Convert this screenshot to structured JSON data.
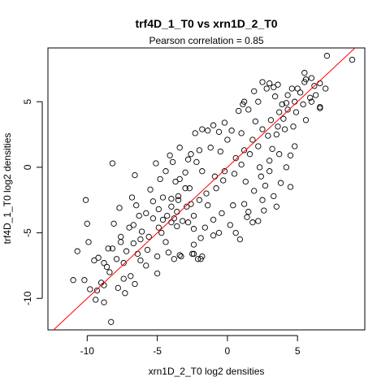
{
  "chart_data": {
    "type": "scatter",
    "title": "trf4D_1_T0 vs xrn1D_2_T0",
    "subtitle": "Pearson correlation =  0.85",
    "xlabel": "xrn1D_2_T0 log2 densities",
    "ylabel": "trf4D_1_T0 log2 densities",
    "xlim": [
      -12.8,
      9.8
    ],
    "ylim": [
      -12.4,
      9.1
    ],
    "x_ticks": [
      -10,
      -5,
      0,
      5
    ],
    "y_ticks": [
      -10,
      -5,
      0,
      5
    ],
    "x_tick_labels": [
      "-10",
      "-5",
      "0",
      "5"
    ],
    "y_tick_labels": [
      "-10",
      "-5",
      "0",
      "5"
    ],
    "grid": false,
    "marker": "open-circle",
    "point_color": "#000000",
    "fit_line": {
      "slope": 1.0,
      "intercept": 0.0,
      "color": "#ff0000"
    },
    "points": [
      [
        -10.2,
        -8.6
      ],
      [
        -9.8,
        -9.3
      ],
      [
        -9.0,
        -8.8
      ],
      [
        -9.4,
        -10.1
      ],
      [
        -8.8,
        -9.0
      ],
      [
        -11.0,
        -8.6
      ],
      [
        -10.7,
        -6.4
      ],
      [
        -9.9,
        -5.7
      ],
      [
        -10.0,
        -4.3
      ],
      [
        -9.5,
        -7.1
      ],
      [
        -10.1,
        -2.5
      ],
      [
        -8.3,
        -11.8
      ],
      [
        -8.2,
        0.3
      ],
      [
        -8.6,
        -7.6
      ],
      [
        -8.8,
        -10.3
      ],
      [
        -8.1,
        -4.3
      ],
      [
        -7.6,
        -5.3
      ],
      [
        -7.8,
        -9.2
      ],
      [
        -7.4,
        -8.5
      ],
      [
        -7.4,
        -7.3
      ],
      [
        -7.7,
        -3.1
      ],
      [
        -8.2,
        -6.2
      ],
      [
        -6.6,
        -0.6
      ],
      [
        -6.9,
        -8.3
      ],
      [
        -6.2,
        -7.1
      ],
      [
        -6.7,
        -4.4
      ],
      [
        -6.5,
        -2.9
      ],
      [
        -6.2,
        -5.5
      ],
      [
        -6.3,
        -3.7
      ],
      [
        -6.8,
        -2.3
      ],
      [
        -5.5,
        -1.7
      ],
      [
        -5.7,
        -6.3
      ],
      [
        -5.3,
        -3.9
      ],
      [
        -5.0,
        -8.1
      ],
      [
        -5.1,
        0.3
      ],
      [
        -4.4,
        -0.3
      ],
      [
        -4.9,
        -3.2
      ],
      [
        -4.2,
        -6.5
      ],
      [
        -3.8,
        -7.0
      ],
      [
        -4.7,
        -5.0
      ],
      [
        -3.6,
        -4.5
      ],
      [
        -4.0,
        -2.4
      ],
      [
        -3.4,
        -0.9
      ],
      [
        -3.3,
        -6.8
      ],
      [
        -3.9,
        0.4
      ],
      [
        -2.3,
        2.6
      ],
      [
        -3.5,
        -2.5
      ],
      [
        -3.0,
        -1.6
      ],
      [
        -2.6,
        1.0
      ],
      [
        -2.5,
        -6.6
      ],
      [
        -1.8,
        -6.8
      ],
      [
        -1.9,
        -7.0
      ],
      [
        -2.4,
        -4.7
      ],
      [
        -1.8,
        2.9
      ],
      [
        -1.0,
        3.2
      ],
      [
        -0.2,
        3.4
      ],
      [
        0.8,
        4.3
      ],
      [
        1.1,
        4.8
      ],
      [
        1.2,
        5.0
      ],
      [
        1.9,
        5.8
      ],
      [
        2.8,
        6.0
      ],
      [
        3.3,
        6.1
      ],
      [
        2.5,
        6.5
      ],
      [
        3.0,
        6.4
      ],
      [
        3.6,
        6.3
      ],
      [
        4.6,
        6.0
      ],
      [
        5.0,
        6.0
      ],
      [
        5.6,
        6.7
      ],
      [
        6.2,
        6.2
      ],
      [
        6.6,
        6.4
      ],
      [
        5.5,
        7.2
      ],
      [
        7.1,
        8.5
      ],
      [
        8.9,
        8.2
      ],
      [
        5.5,
        6.5
      ],
      [
        6.0,
        6.8
      ],
      [
        6.6,
        4.6
      ],
      [
        5.9,
        5.3
      ],
      [
        5.4,
        4.8
      ],
      [
        6.0,
        5.0
      ],
      [
        5.6,
        3.6
      ],
      [
        6.6,
        4.5
      ],
      [
        4.5,
        0.9
      ],
      [
        4.8,
        1.6
      ],
      [
        4.2,
        0.0
      ],
      [
        4.5,
        -1.5
      ],
      [
        3.8,
        -1.2
      ],
      [
        3.3,
        -2.2
      ],
      [
        3.5,
        -3.0
      ],
      [
        2.7,
        -1.4
      ],
      [
        2.6,
        -3.3
      ],
      [
        2.5,
        -2.5
      ],
      [
        2.2,
        -4.1
      ],
      [
        1.8,
        -4.2
      ],
      [
        1.5,
        -3.4
      ],
      [
        1.4,
        -3.8
      ],
      [
        1.2,
        -2.8
      ],
      [
        0.6,
        -5.0
      ],
      [
        0.9,
        -5.5
      ],
      [
        -0.6,
        -5.0
      ],
      [
        -1.0,
        -5.2
      ],
      [
        -1.9,
        -5.4
      ],
      [
        -2.4,
        -5.9
      ],
      [
        -2.4,
        -6.6
      ],
      [
        -2.1,
        -7.0
      ],
      [
        -3.4,
        -6.7
      ],
      [
        3.0,
        0.5
      ],
      [
        3.2,
        1.4
      ],
      [
        3.7,
        1.0
      ],
      [
        2.3,
        0.0
      ],
      [
        3.5,
        2.5
      ],
      [
        4.1,
        2.9
      ],
      [
        4.7,
        3.1
      ],
      [
        4.9,
        4.2
      ],
      [
        4.0,
        3.7
      ],
      [
        4.3,
        5.5
      ],
      [
        4.8,
        5.0
      ],
      [
        3.4,
        5.4
      ],
      [
        2.2,
        5.0
      ],
      [
        1.5,
        4.4
      ],
      [
        0.3,
        2.8
      ],
      [
        -0.6,
        2.7
      ],
      [
        -1.4,
        2.8
      ],
      [
        -2.0,
        1.3
      ],
      [
        -2.8,
        0.6
      ],
      [
        -3.4,
        1.5
      ],
      [
        -3.0,
        -0.4
      ],
      [
        -3.7,
        -1.1
      ],
      [
        -4.6,
        -2.3
      ],
      [
        -5.3,
        -2.6
      ],
      [
        -5.8,
        -3.5
      ],
      [
        -6.1,
        -4.9
      ],
      [
        -6.7,
        -5.8
      ],
      [
        -7.2,
        -6.4
      ],
      [
        -7.9,
        -7.0
      ],
      [
        -8.4,
        -8.0
      ],
      [
        -8.8,
        -7.3
      ],
      [
        -9.3,
        -9.4
      ],
      [
        -7.3,
        -9.6
      ],
      [
        -6.6,
        -8.9
      ],
      [
        -5.8,
        -7.5
      ],
      [
        -5.0,
        -6.8
      ],
      [
        -4.4,
        -5.7
      ],
      [
        -4.0,
        -4.2
      ],
      [
        -3.6,
        -3.4
      ],
      [
        -2.9,
        -3.0
      ],
      [
        -2.4,
        -3.7
      ],
      [
        -1.5,
        -2.0
      ],
      [
        -0.8,
        -1.6
      ],
      [
        -0.3,
        -1.0
      ],
      [
        0.5,
        -0.5
      ],
      [
        1.0,
        0.2
      ],
      [
        1.6,
        1.0
      ],
      [
        2.2,
        1.6
      ],
      [
        2.9,
        2.4
      ],
      [
        3.6,
        3.1
      ],
      [
        -1.0,
        -4.0
      ],
      [
        -1.6,
        -4.6
      ],
      [
        -2.8,
        -4.2
      ],
      [
        -0.4,
        -3.5
      ],
      [
        0.2,
        -4.4
      ],
      [
        -4.8,
        -0.9
      ],
      [
        -4.1,
        0.9
      ],
      [
        -2.2,
        0.4
      ],
      [
        -1.2,
        1.5
      ],
      [
        0.0,
        2.1
      ],
      [
        0.4,
        -2.9
      ],
      [
        1.9,
        -1.8
      ],
      [
        2.4,
        -0.7
      ],
      [
        1.3,
        -1.1
      ],
      [
        3.0,
        -0.3
      ],
      [
        -7.0,
        -4.6
      ],
      [
        -7.6,
        -5.7
      ],
      [
        -8.5,
        -6.2
      ],
      [
        -9.2,
        -6.9
      ],
      [
        -6.4,
        -6.6
      ],
      [
        6.3,
        5.5
      ],
      [
        7.0,
        6.0
      ],
      [
        5.2,
        5.7
      ],
      [
        4.3,
        4.4
      ],
      [
        3.9,
        4.8
      ],
      [
        -5.6,
        -5.3
      ],
      [
        -4.9,
        -4.6
      ],
      [
        -4.3,
        -3.7
      ],
      [
        -3.8,
        -3.9
      ],
      [
        -3.2,
        -4.1
      ],
      [
        -2.6,
        -2.8
      ],
      [
        -2.0,
        -2.5
      ],
      [
        -1.4,
        -2.9
      ],
      [
        -0.9,
        -0.7
      ],
      [
        -0.2,
        -0.3
      ],
      [
        0.6,
        0.7
      ],
      [
        1.2,
        1.3
      ],
      [
        1.8,
        2.1
      ],
      [
        2.5,
        2.9
      ],
      [
        3.1,
        3.6
      ],
      [
        3.7,
        4.2
      ],
      [
        4.2,
        4.9
      ],
      [
        2.0,
        3.5
      ],
      [
        1.0,
        2.6
      ],
      [
        -0.5,
        1.2
      ],
      [
        -1.8,
        -0.3
      ],
      [
        -2.7,
        -1.6
      ],
      [
        -3.5,
        -2.2
      ],
      [
        -4.0,
        -3.0
      ],
      [
        -4.6,
        -4.0
      ]
    ]
  }
}
